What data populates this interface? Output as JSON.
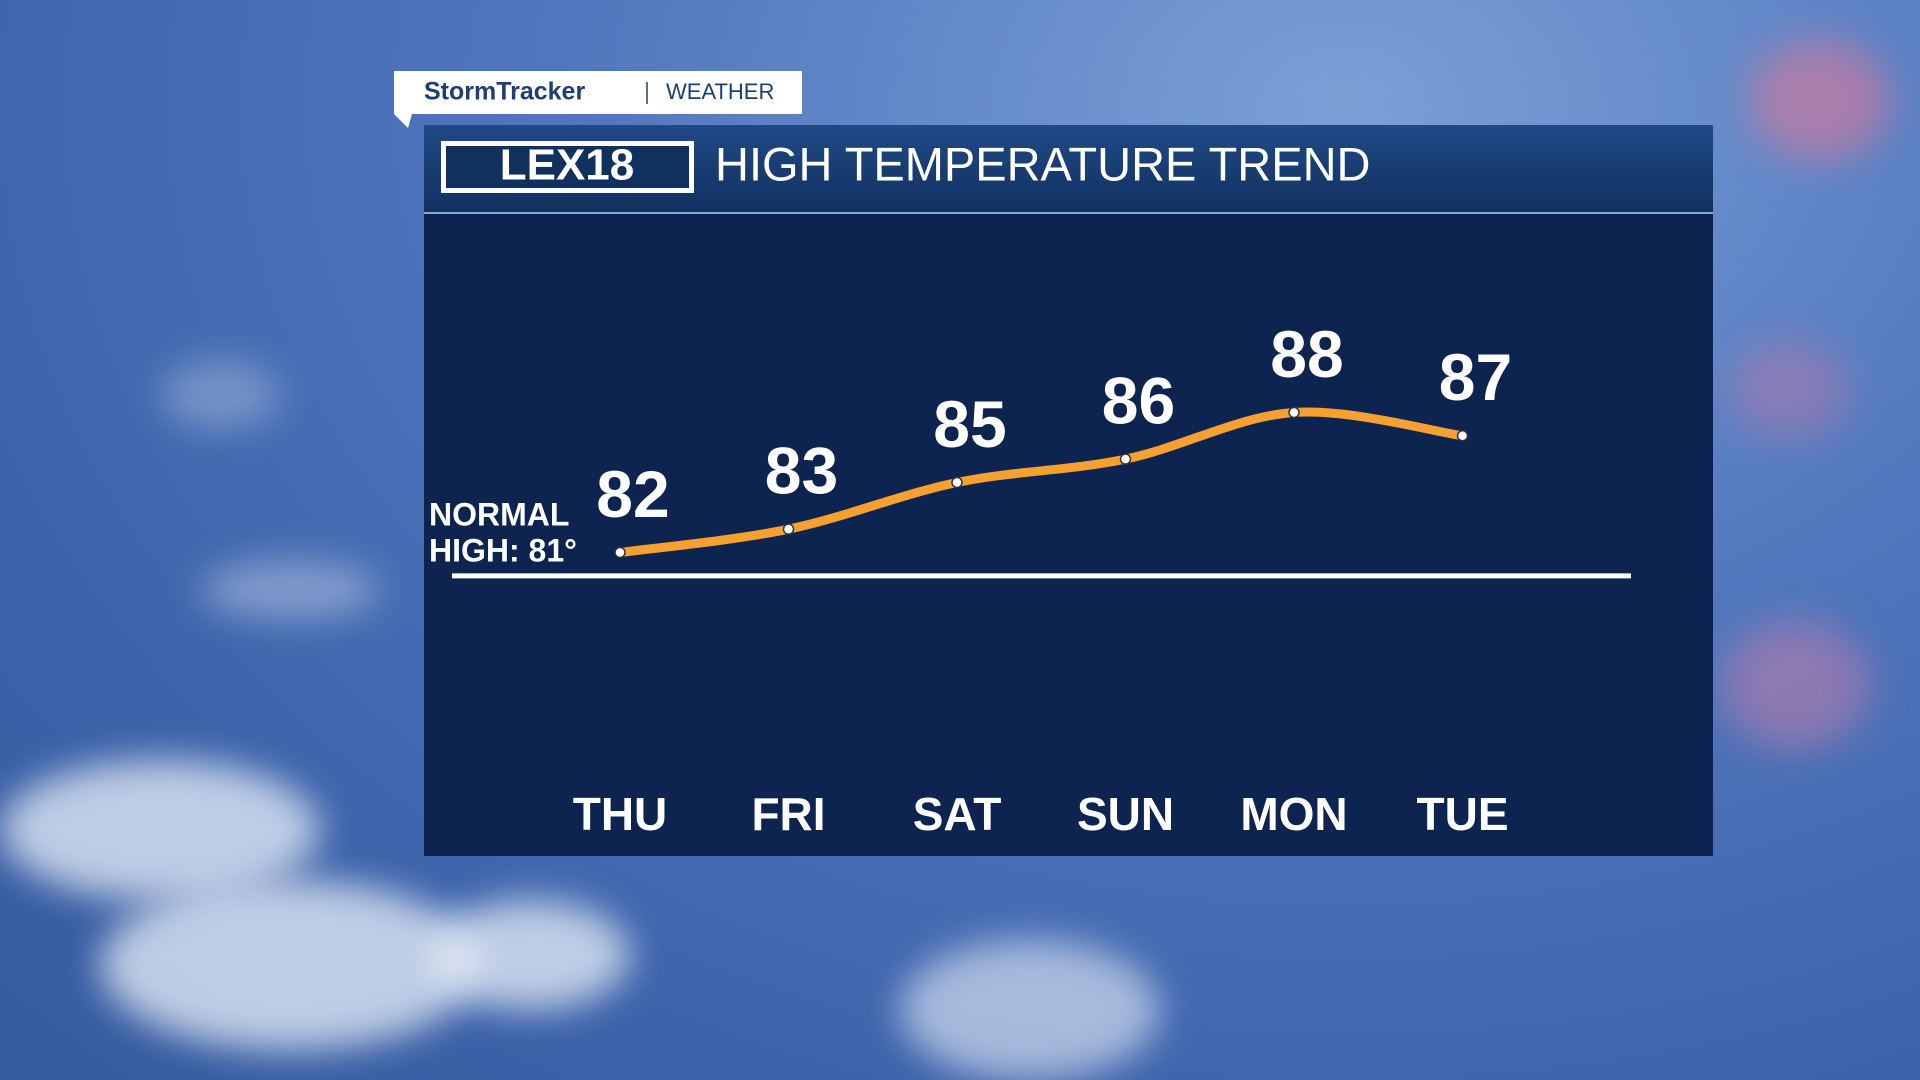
{
  "chart_data": {
    "type": "line",
    "brand": "StormTracker",
    "brand_section": "WEATHER",
    "logo": "LEX18",
    "title": "HIGH TEMPERATURE TREND",
    "categories": [
      "THU",
      "FRI",
      "SAT",
      "SUN",
      "MON",
      "TUE"
    ],
    "series": [
      {
        "name": "High",
        "color": "#f5a030",
        "values": [
          82,
          83,
          85,
          86,
          88,
          87
        ]
      }
    ],
    "normal_high": 81,
    "normal_label": [
      "NORMAL",
      "HIGH: 81°"
    ],
    "normal_color": "#ffffff",
    "ylim": [
      72,
      96.5
    ]
  }
}
